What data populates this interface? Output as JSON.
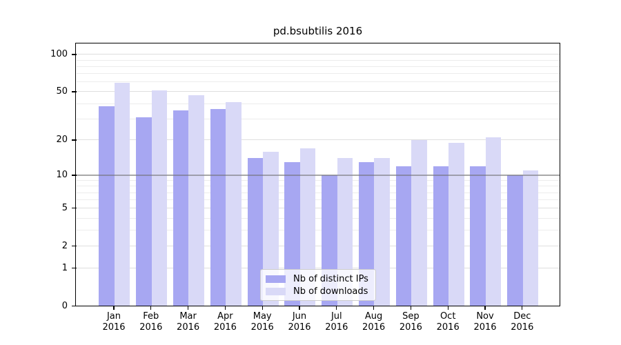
{
  "title": "pd.bsubtilis 2016",
  "chart_data": {
    "type": "bar",
    "title": "pd.bsubtilis 2016",
    "year_label": "2016",
    "categories": [
      "Jan",
      "Feb",
      "Mar",
      "Apr",
      "May",
      "Jun",
      "Jul",
      "Aug",
      "Sep",
      "Oct",
      "Nov",
      "Dec"
    ],
    "series": [
      {
        "name": "Nb of distinct IPs",
        "color": "#a7a7f2",
        "values": [
          38,
          31,
          35,
          36,
          14,
          13,
          10,
          13,
          12,
          12,
          12,
          10
        ]
      },
      {
        "name": "Nb of downloads",
        "color": "#d9d9f7",
        "values": [
          59,
          51,
          47,
          41,
          16,
          17,
          14,
          14,
          20,
          19,
          21,
          11
        ]
      }
    ],
    "yscale": "log1p",
    "ylim": [
      0,
      122
    ],
    "y_major_ticks": [
      0,
      1,
      2,
      5,
      10,
      20,
      50,
      100
    ],
    "y_minor_ticks": [
      3,
      4,
      6,
      7,
      8,
      9,
      30,
      40,
      60,
      70,
      80,
      90
    ],
    "grid": true,
    "reference_line_y": 10,
    "legend_position": "lower-center",
    "xlabel": "",
    "ylabel": ""
  },
  "colors": {
    "bar_ips": "#a7a7f2",
    "bar_downloads": "#d9d9f7",
    "grid_major": "#dedede",
    "grid_minor": "#ececec",
    "reference_line": "rgba(110,110,110,0.55)",
    "spine": "#000000",
    "legend_bg": "rgba(255,255,255,0.8)",
    "legend_border": "#cccccc",
    "background": "#ffffff"
  }
}
